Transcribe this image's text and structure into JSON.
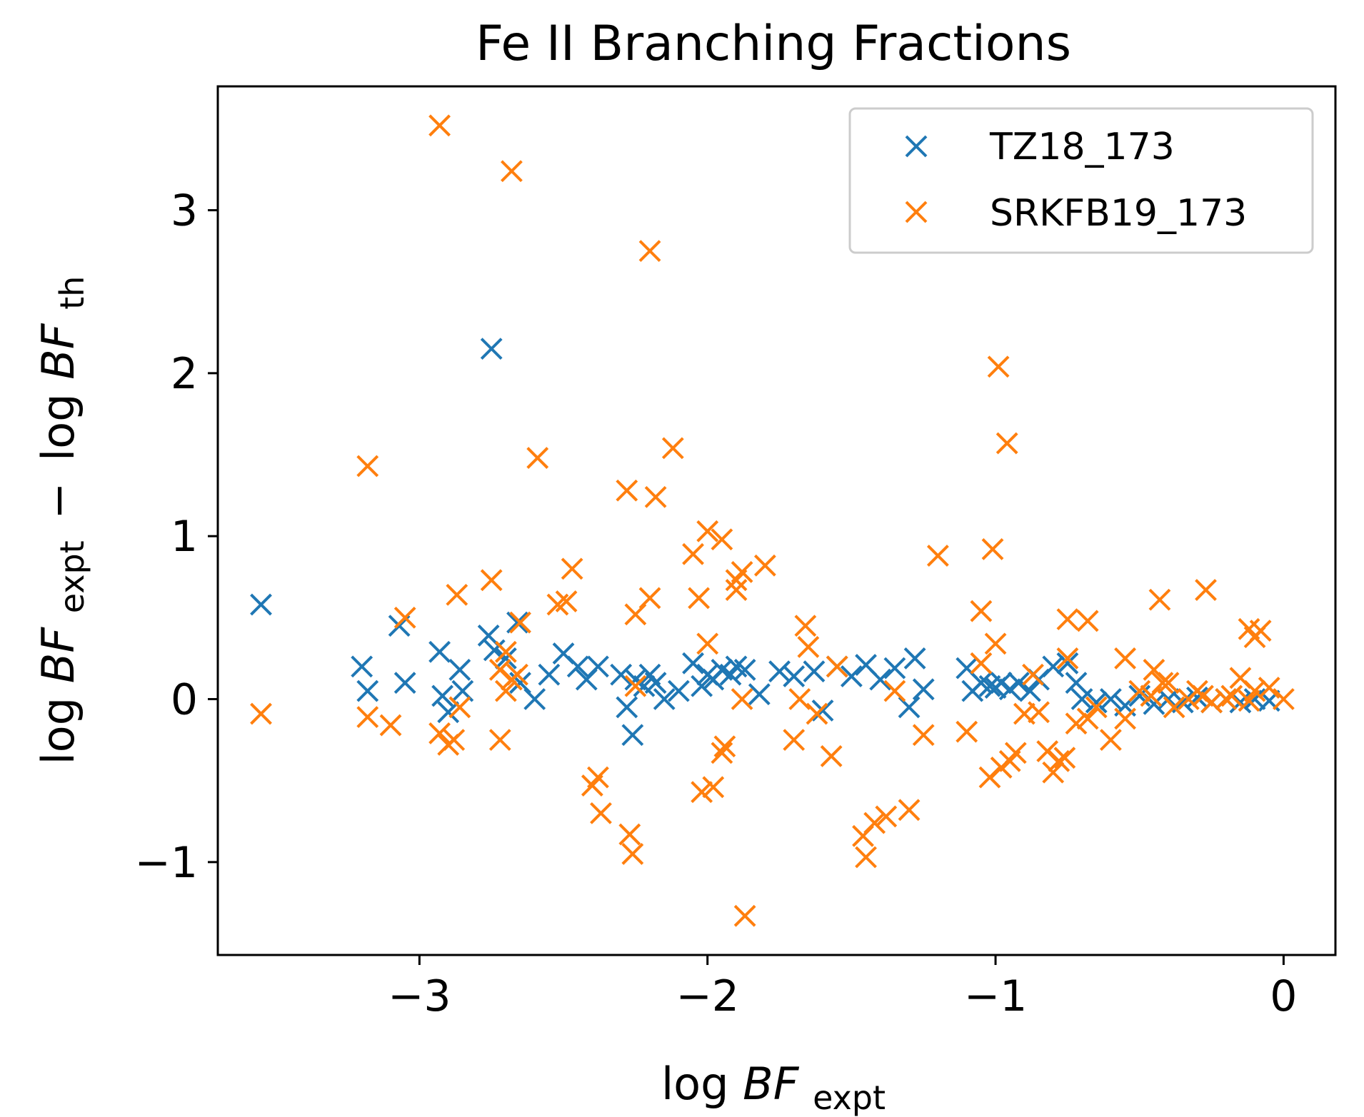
{
  "chart_data": {
    "type": "scatter",
    "title": "Fe II Branching Fractions",
    "xlabel": {
      "prefix": "log",
      "var": "BF",
      "sub": "expt"
    },
    "ylabel": {
      "prefix": "log",
      "var": "BF",
      "sub1": "expt",
      "minus": "−",
      "prefix2": "log",
      "var2": "BF",
      "sub2": "th"
    },
    "xlim": [
      -3.7,
      0.18
    ],
    "ylim": [
      -1.57,
      3.76
    ],
    "xticks": [
      -3,
      -2,
      -1,
      0
    ],
    "xtick_labels": [
      "−3",
      "−2",
      "−1",
      "0"
    ],
    "yticks": [
      -1,
      0,
      1,
      2,
      3
    ],
    "ytick_labels": [
      "−1",
      "0",
      "1",
      "2",
      "3"
    ],
    "grid": false,
    "legend_position": "top-right",
    "series": [
      {
        "name": "TZ18_173",
        "color": "#1f77b4",
        "marker": "x",
        "points": [
          [
            -3.55,
            0.58
          ],
          [
            -3.07,
            0.45
          ],
          [
            -2.75,
            2.15
          ],
          [
            -2.76,
            0.39
          ],
          [
            -2.66,
            0.47
          ],
          [
            -3.2,
            0.2
          ],
          [
            -3.18,
            0.05
          ],
          [
            -3.05,
            0.1
          ],
          [
            -2.93,
            0.29
          ],
          [
            -2.92,
            0.02
          ],
          [
            -2.86,
            0.18
          ],
          [
            -2.85,
            0.05
          ],
          [
            -2.9,
            -0.08
          ],
          [
            -2.74,
            0.3
          ],
          [
            -2.7,
            0.25
          ],
          [
            -2.65,
            0.1
          ],
          [
            -2.6,
            0.0
          ],
          [
            -2.55,
            0.15
          ],
          [
            -2.5,
            0.28
          ],
          [
            -2.45,
            0.2
          ],
          [
            -2.42,
            0.12
          ],
          [
            -2.38,
            0.2
          ],
          [
            -2.3,
            0.15
          ],
          [
            -2.28,
            -0.05
          ],
          [
            -2.26,
            -0.22
          ],
          [
            -2.25,
            0.12
          ],
          [
            -2.22,
            0.08
          ],
          [
            -2.2,
            0.15
          ],
          [
            -2.18,
            0.1
          ],
          [
            -2.15,
            0.0
          ],
          [
            -2.1,
            0.05
          ],
          [
            -2.05,
            0.22
          ],
          [
            -2.02,
            0.08
          ],
          [
            -2.0,
            0.15
          ],
          [
            -1.98,
            0.12
          ],
          [
            -1.95,
            0.18
          ],
          [
            -1.92,
            0.15
          ],
          [
            -1.9,
            0.2
          ],
          [
            -1.87,
            0.18
          ],
          [
            -1.82,
            0.03
          ],
          [
            -1.75,
            0.17
          ],
          [
            -1.7,
            0.14
          ],
          [
            -1.63,
            0.17
          ],
          [
            -1.6,
            -0.07
          ],
          [
            -1.55,
            0.2
          ],
          [
            -1.5,
            0.14
          ],
          [
            -1.45,
            0.21
          ],
          [
            -1.4,
            0.12
          ],
          [
            -1.35,
            0.19
          ],
          [
            -1.3,
            -0.05
          ],
          [
            -1.28,
            0.25
          ],
          [
            -1.25,
            0.06
          ],
          [
            -1.1,
            0.19
          ],
          [
            -1.08,
            0.05
          ],
          [
            -1.05,
            0.1
          ],
          [
            -1.02,
            0.08
          ],
          [
            -1.0,
            0.07
          ],
          [
            -0.98,
            0.1
          ],
          [
            -0.95,
            0.06
          ],
          [
            -0.92,
            0.1
          ],
          [
            -0.88,
            0.05
          ],
          [
            -0.85,
            0.12
          ],
          [
            -0.8,
            0.2
          ],
          [
            -0.75,
            0.22
          ],
          [
            -0.72,
            0.1
          ],
          [
            -0.7,
            0.0
          ],
          [
            -0.65,
            -0.02
          ],
          [
            -0.6,
            0.0
          ],
          [
            -0.55,
            -0.04
          ],
          [
            -0.5,
            0.02
          ],
          [
            -0.45,
            -0.03
          ],
          [
            -0.4,
            0.0
          ],
          [
            -0.35,
            -0.02
          ],
          [
            -0.3,
            0.01
          ],
          [
            -0.25,
            -0.02
          ],
          [
            -0.2,
            0.0
          ],
          [
            -0.15,
            -0.02
          ],
          [
            -0.1,
            0.0
          ],
          [
            -0.05,
            -0.01
          ]
        ]
      },
      {
        "name": "SRKFB19_173",
        "color": "#ff7f0e",
        "marker": "x",
        "points": [
          [
            -2.93,
            3.52
          ],
          [
            -2.68,
            3.24
          ],
          [
            -2.2,
            2.75
          ],
          [
            -3.18,
            1.43
          ],
          [
            -2.59,
            1.48
          ],
          [
            -2.12,
            1.54
          ],
          [
            -2.28,
            1.28
          ],
          [
            -2.18,
            1.24
          ],
          [
            -2.0,
            1.03
          ],
          [
            -1.95,
            0.98
          ],
          [
            -2.05,
            0.89
          ],
          [
            -1.88,
            0.78
          ],
          [
            -1.9,
            0.73
          ],
          [
            -1.9,
            0.67
          ],
          [
            -1.8,
            0.82
          ],
          [
            -2.75,
            0.73
          ],
          [
            -2.47,
            0.8
          ],
          [
            -2.87,
            0.64
          ],
          [
            -2.52,
            0.58
          ],
          [
            -2.49,
            0.6
          ],
          [
            -2.25,
            0.52
          ],
          [
            -2.2,
            0.62
          ],
          [
            -2.03,
            0.62
          ],
          [
            -3.05,
            0.5
          ],
          [
            -2.65,
            0.47
          ],
          [
            -2.0,
            0.34
          ],
          [
            -1.66,
            0.45
          ],
          [
            -1.65,
            0.32
          ],
          [
            -1.2,
            0.88
          ],
          [
            -1.01,
            0.92
          ],
          [
            -1.05,
            0.54
          ],
          [
            -1.0,
            0.34
          ],
          [
            -0.99,
            2.04
          ],
          [
            -0.96,
            1.57
          ],
          [
            -0.75,
            0.49
          ],
          [
            -0.68,
            0.48
          ],
          [
            -0.43,
            0.61
          ],
          [
            -0.27,
            0.67
          ],
          [
            -0.12,
            0.43
          ],
          [
            -0.1,
            0.38
          ],
          [
            -0.08,
            0.42
          ],
          [
            -2.7,
            0.29
          ],
          [
            -2.72,
            0.18
          ],
          [
            -2.68,
            0.12
          ],
          [
            -2.66,
            0.15
          ],
          [
            -2.7,
            0.05
          ],
          [
            -2.72,
            -0.25
          ],
          [
            -3.55,
            -0.09
          ],
          [
            -3.18,
            -0.11
          ],
          [
            -3.1,
            -0.16
          ],
          [
            -2.93,
            -0.21
          ],
          [
            -2.9,
            -0.28
          ],
          [
            -2.88,
            -0.25
          ],
          [
            -2.86,
            -0.05
          ],
          [
            -2.38,
            -0.48
          ],
          [
            -2.4,
            -0.53
          ],
          [
            -2.37,
            -0.7
          ],
          [
            -2.27,
            -0.83
          ],
          [
            -2.26,
            -0.95
          ],
          [
            -2.02,
            -0.57
          ],
          [
            -1.98,
            -0.54
          ],
          [
            -1.95,
            -0.33
          ],
          [
            -1.94,
            -0.29
          ],
          [
            -1.87,
            -1.33
          ],
          [
            -1.7,
            -0.25
          ],
          [
            -1.62,
            -0.09
          ],
          [
            -1.57,
            -0.35
          ],
          [
            -1.46,
            -0.84
          ],
          [
            -1.45,
            -0.97
          ],
          [
            -1.42,
            -0.76
          ],
          [
            -1.38,
            -0.72
          ],
          [
            -1.3,
            -0.68
          ],
          [
            -1.25,
            -0.22
          ],
          [
            -1.1,
            -0.2
          ],
          [
            -1.02,
            -0.48
          ],
          [
            -0.98,
            -0.42
          ],
          [
            -0.95,
            -0.38
          ],
          [
            -0.93,
            -0.33
          ],
          [
            -0.9,
            -0.09
          ],
          [
            -0.85,
            -0.08
          ],
          [
            -0.82,
            -0.32
          ],
          [
            -0.8,
            -0.45
          ],
          [
            -0.78,
            -0.38
          ],
          [
            -0.76,
            -0.36
          ],
          [
            -0.72,
            -0.15
          ],
          [
            -0.68,
            -0.12
          ],
          [
            -0.65,
            -0.05
          ],
          [
            -0.6,
            -0.25
          ],
          [
            -0.55,
            -0.12
          ],
          [
            -0.5,
            0.05
          ],
          [
            -0.46,
            0.02
          ],
          [
            -0.42,
            0.1
          ],
          [
            -0.38,
            -0.05
          ],
          [
            -0.33,
            0.0
          ],
          [
            -0.28,
            0.02
          ],
          [
            -0.2,
            0.0
          ],
          [
            -0.15,
            0.13
          ],
          [
            -0.1,
            0.05
          ],
          [
            -0.05,
            0.07
          ],
          [
            0.0,
            0.0
          ],
          [
            -1.68,
            0.0
          ],
          [
            -1.55,
            0.2
          ],
          [
            -1.35,
            0.05
          ],
          [
            -1.05,
            0.22
          ],
          [
            -0.87,
            0.15
          ],
          [
            -0.75,
            0.25
          ],
          [
            -0.55,
            0.25
          ],
          [
            -0.45,
            0.18
          ],
          [
            -0.4,
            0.1
          ],
          [
            -0.3,
            0.05
          ],
          [
            -0.25,
            -0.02
          ],
          [
            -0.18,
            0.02
          ],
          [
            -0.12,
            -0.01
          ],
          [
            -1.88,
            0.0
          ],
          [
            -2.25,
            0.08
          ]
        ]
      }
    ]
  }
}
